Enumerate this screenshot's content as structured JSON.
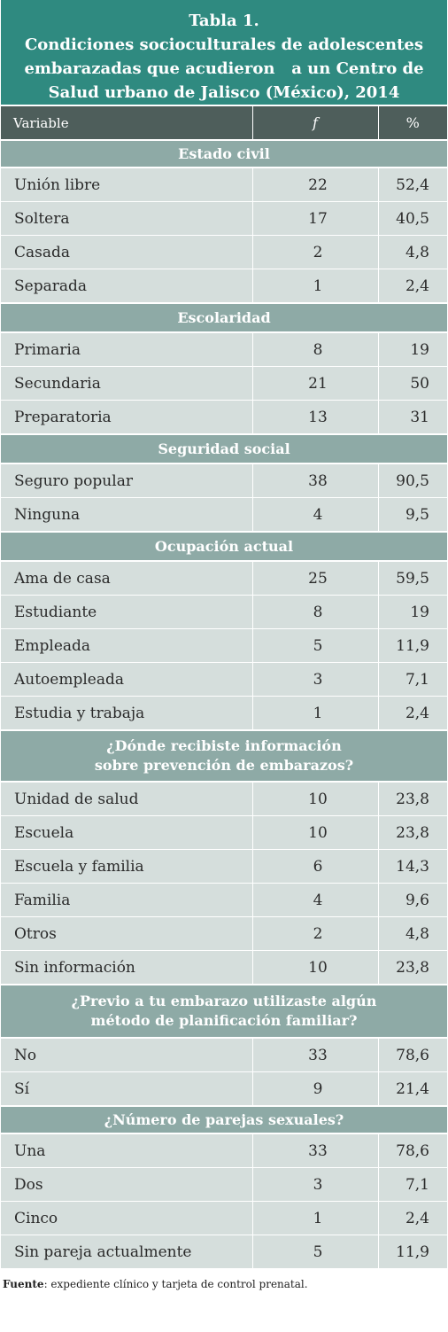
{
  "title_lines": [
    "Tabla 1.",
    "Condiciones socioculturales de adolescentes",
    "embarazadas que acudieron   a un Centro de",
    "Salud urbano de Jalisco (México), 2014"
  ],
  "headers": {
    "variable": "Variable",
    "f": "f",
    "pct": "%"
  },
  "sections": [
    {
      "title_lines": [
        "Estado civil"
      ],
      "height": 33,
      "rows": [
        {
          "label": "Unión libre",
          "f": "22",
          "pct": "52,4"
        },
        {
          "label": "Soltera",
          "f": "17",
          "pct": "40,5"
        },
        {
          "label": "Casada",
          "f": "2",
          "pct": "4,8"
        },
        {
          "label": "Separada",
          "f": "1",
          "pct": "2,4"
        }
      ]
    },
    {
      "title_lines": [
        "Escolaridad"
      ],
      "height": 35,
      "rows": [
        {
          "label": "Primaria",
          "f": "8",
          "pct": "19"
        },
        {
          "label": "Secundaria",
          "f": "21",
          "pct": "50"
        },
        {
          "label": "Preparatoria",
          "f": "13",
          "pct": "31"
        }
      ]
    },
    {
      "title_lines": [
        "Seguridad social"
      ],
      "height": 35,
      "rows": [
        {
          "label": "Seguro popular",
          "f": "38",
          "pct": "90,5"
        },
        {
          "label": "Ninguna",
          "f": "4",
          "pct": "9,5"
        }
      ]
    },
    {
      "title_lines": [
        "Ocupación actual"
      ],
      "height": 35,
      "rows": [
        {
          "label": "Ama de casa",
          "f": "25",
          "pct": "59,5"
        },
        {
          "label": "Estudiante",
          "f": "8",
          "pct": "19"
        },
        {
          "label": "Empleada",
          "f": "5",
          "pct": "11,9"
        },
        {
          "label": "Autoempleada",
          "f": "3",
          "pct": "7,1"
        },
        {
          "label": "Estudia y trabaja",
          "f": "1",
          "pct": "2,4"
        }
      ]
    },
    {
      "title_lines": [
        "¿Dónde recibiste información",
        "sobre prevención de embarazos?"
      ],
      "height": 60,
      "rows": [
        {
          "label": "Unidad de salud",
          "f": "10",
          "pct": "23,8"
        },
        {
          "label": "Escuela",
          "f": "10",
          "pct": "23,8"
        },
        {
          "label": "Escuela y familia",
          "f": "6",
          "pct": "14,3"
        },
        {
          "label": "Familia",
          "f": "4",
          "pct": "9,6"
        },
        {
          "label": "Otros",
          "f": "2",
          "pct": "4,8"
        },
        {
          "label": "Sin información",
          "f": "10",
          "pct": "23,8"
        }
      ]
    },
    {
      "title_lines": [
        "¿Previo a tu embarazo utilizaste algún",
        "método de planificación familiar?"
      ],
      "height": 62,
      "rows": [
        {
          "label": "No",
          "f": "33",
          "pct": "78,6"
        },
        {
          "label": "Sí",
          "f": "9",
          "pct": "21,4"
        }
      ]
    },
    {
      "title_lines": [
        "¿Número de parejas sexuales?"
      ],
      "height": 33,
      "rows": [
        {
          "label": "Una",
          "f": "33",
          "pct": "78,6"
        },
        {
          "label": "Dos",
          "f": "3",
          "pct": "7,1"
        },
        {
          "label": "Cinco",
          "f": "1",
          "pct": "2,4"
        },
        {
          "label": "Sin pareja actualmente",
          "f": "5",
          "pct": "11,9"
        }
      ]
    }
  ],
  "footer": {
    "label": "Fuente",
    "text": ": expediente clínico y tarjeta de control prenatal."
  }
}
